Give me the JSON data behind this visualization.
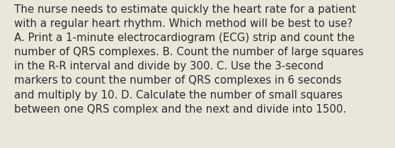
{
  "lines": [
    "The nurse needs to estimate quickly the heart rate for a patient",
    "with a regular heart rhythm. Which method will be best to use?",
    "A. Print a 1-minute electrocardiogram (ECG) strip and count the",
    "number of QRS complexes. B. Count the number of large squares",
    "in the R-R interval and divide by 300. C. Use the 3-second",
    "markers to count the number of QRS complexes in 6 seconds",
    "and multiply by 10. D. Calculate the number of small squares",
    "between one QRS complex and the next and divide into 1500."
  ],
  "background_color": "#eae6da",
  "text_color": "#2b2b2b",
  "font_size": 10.8,
  "fig_width": 5.58,
  "fig_height": 2.09,
  "dpi": 100
}
